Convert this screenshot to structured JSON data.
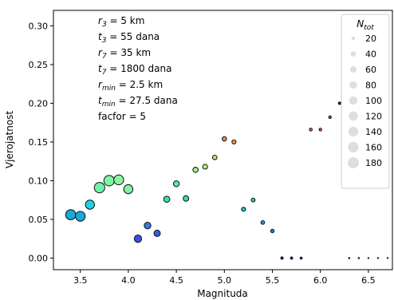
{
  "chart_data": {
    "type": "scatter",
    "xlabel": "Magnituda",
    "ylabel": "Vjerojatnost",
    "xlim": [
      3.22,
      6.75
    ],
    "ylim": [
      -0.015,
      0.32
    ],
    "x_ticks": [
      3.5,
      4.0,
      4.5,
      5.0,
      5.5,
      6.0,
      6.5
    ],
    "x_tick_labels": [
      "3.5",
      "4.0",
      "4.5",
      "5.0",
      "5.5",
      "6.0",
      "6.5"
    ],
    "y_ticks": [
      0.0,
      0.05,
      0.1,
      0.15,
      0.2,
      0.25,
      0.3
    ],
    "y_tick_labels": [
      "0.00",
      "0.05",
      "0.10",
      "0.15",
      "0.20",
      "0.25",
      "0.30"
    ],
    "grid": false,
    "annotations": [
      {
        "label": "r",
        "sub": "3",
        "value": " = 5 km"
      },
      {
        "label": "t",
        "sub": "3",
        "value": " = 55 dana"
      },
      {
        "label": "r",
        "sub": "7",
        "value": " = 35 km"
      },
      {
        "label": "t",
        "sub": "7",
        "value": " = 1800 dana"
      },
      {
        "label": "r",
        "sub": "min",
        "value": " = 2.5 km"
      },
      {
        "label": "t",
        "sub": "min",
        "value": " = 27.5 dana"
      },
      {
        "label": "facfor",
        "sub": "",
        "value": " = 5"
      }
    ],
    "legend": {
      "position": "top-right",
      "title": "N",
      "title_sub": "tot",
      "entries": [
        20,
        40,
        60,
        80,
        100,
        120,
        140,
        160,
        180
      ]
    },
    "points": [
      {
        "x": 3.4,
        "y": 0.056,
        "n": 150,
        "color": "#1ba8d8"
      },
      {
        "x": 3.5,
        "y": 0.054,
        "n": 140,
        "color": "#1ba8d8"
      },
      {
        "x": 3.6,
        "y": 0.069,
        "n": 120,
        "color": "#22d3dd"
      },
      {
        "x": 3.7,
        "y": 0.091,
        "n": 160,
        "color": "#6cf2a9"
      },
      {
        "x": 3.8,
        "y": 0.1,
        "n": 160,
        "color": "#7ff5a6"
      },
      {
        "x": 3.9,
        "y": 0.101,
        "n": 140,
        "color": "#8ff59e"
      },
      {
        "x": 4.0,
        "y": 0.089,
        "n": 120,
        "color": "#83f2a3"
      },
      {
        "x": 4.1,
        "y": 0.025,
        "n": 80,
        "color": "#3a4fdf"
      },
      {
        "x": 4.2,
        "y": 0.042,
        "n": 65,
        "color": "#2f7ee6"
      },
      {
        "x": 4.3,
        "y": 0.032,
        "n": 60,
        "color": "#3360d8"
      },
      {
        "x": 4.4,
        "y": 0.076,
        "n": 55,
        "color": "#3fdcb6"
      },
      {
        "x": 4.5,
        "y": 0.096,
        "n": 50,
        "color": "#55e8b0"
      },
      {
        "x": 4.6,
        "y": 0.077,
        "n": 45,
        "color": "#3fd6b2"
      },
      {
        "x": 4.7,
        "y": 0.114,
        "n": 40,
        "color": "#9ff08a"
      },
      {
        "x": 4.8,
        "y": 0.118,
        "n": 35,
        "color": "#b0f07c"
      },
      {
        "x": 4.9,
        "y": 0.13,
        "n": 30,
        "color": "#ddd56a"
      },
      {
        "x": 5.0,
        "y": 0.154,
        "n": 28,
        "color": "#f28a4a"
      },
      {
        "x": 5.1,
        "y": 0.15,
        "n": 25,
        "color": "#f09650"
      },
      {
        "x": 5.2,
        "y": 0.063,
        "n": 25,
        "color": "#2fc8c0"
      },
      {
        "x": 5.3,
        "y": 0.075,
        "n": 22,
        "color": "#2fc8b8"
      },
      {
        "x": 5.4,
        "y": 0.046,
        "n": 20,
        "color": "#249ed8"
      },
      {
        "x": 5.5,
        "y": 0.035,
        "n": 18,
        "color": "#2f7ae0"
      },
      {
        "x": 5.6,
        "y": 0.0,
        "n": 15,
        "color": "#1a1650"
      },
      {
        "x": 5.7,
        "y": 0.0,
        "n": 14,
        "color": "#1a1650"
      },
      {
        "x": 5.8,
        "y": 0.0,
        "n": 12,
        "color": "#1a1650"
      },
      {
        "x": 5.9,
        "y": 0.166,
        "n": 12,
        "color": "#e06a3a"
      },
      {
        "x": 6.0,
        "y": 0.166,
        "n": 11,
        "color": "#e06a3a"
      },
      {
        "x": 6.1,
        "y": 0.182,
        "n": 10,
        "color": "#c0402a"
      },
      {
        "x": 6.2,
        "y": 0.2,
        "n": 9,
        "color": "#7a1010"
      },
      {
        "x": 6.3,
        "y": 0.0,
        "n": 6,
        "color": "#1a1650"
      },
      {
        "x": 6.4,
        "y": 0.0,
        "n": 6,
        "color": "#1a1650"
      },
      {
        "x": 6.5,
        "y": 0.0,
        "n": 5,
        "color": "#1a1650"
      },
      {
        "x": 6.6,
        "y": 0.0,
        "n": 5,
        "color": "#1a1650"
      },
      {
        "x": 6.7,
        "y": 0.0,
        "n": 5,
        "color": "#1a1650"
      }
    ]
  }
}
